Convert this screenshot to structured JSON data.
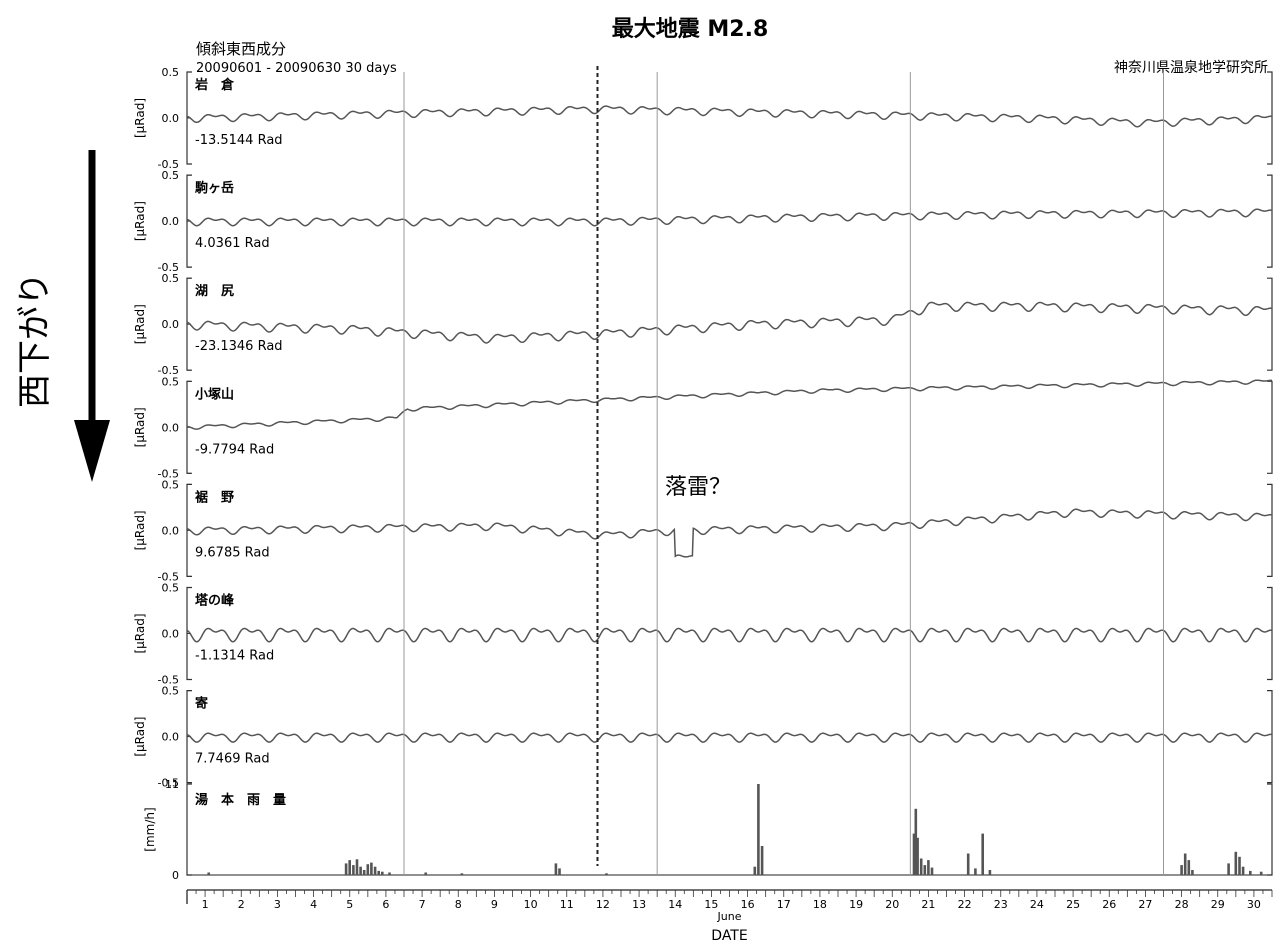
{
  "title": "最大地震 M2.8",
  "header": {
    "component": "傾斜東西成分",
    "period": "20090601 - 20090630 30 days",
    "institute": "神奈川県温泉地学研究所"
  },
  "side_label": "西下がり",
  "annotation": "落雷？",
  "chart_data": {
    "type": "line",
    "x_range": [
      0.5,
      30.5
    ],
    "x_ticks": [
      "1",
      "2",
      "3",
      "4",
      "5",
      "6",
      "7",
      "8",
      "9",
      "10",
      "11",
      "12",
      "13",
      "14",
      "15",
      "16",
      "17",
      "18",
      "19",
      "20",
      "21",
      "22",
      "23",
      "24",
      "25",
      "26",
      "27",
      "28",
      "29",
      "30"
    ],
    "xlabel_month": "June",
    "xlabel": "DATE",
    "earthquake_day": 11.85,
    "weekly_grid_days": [
      6.5,
      13.5,
      20.5,
      27.5
    ],
    "tilt_ylim": [
      -0.5,
      0.5
    ],
    "tilt_yticks": [
      "0.5",
      "0.0",
      "-0.5"
    ],
    "tilt_ylabel": "[μRad]",
    "stations": [
      {
        "name": "岩　倉",
        "offset": "-13.5144 Rad",
        "trend": [
          [
            0.5,
            0
          ],
          [
            6,
            0.05
          ],
          [
            12,
            0.1
          ],
          [
            18,
            0.05
          ],
          [
            24,
            0
          ],
          [
            27,
            -0.05
          ],
          [
            30.5,
            0
          ]
        ],
        "amp": 0.05
      },
      {
        "name": "駒ヶ岳",
        "offset": "4.0361 Rad",
        "trend": [
          [
            0.5,
            0
          ],
          [
            6,
            0
          ],
          [
            12,
            0
          ],
          [
            18,
            0.05
          ],
          [
            24,
            0.08
          ],
          [
            30.5,
            0.1
          ]
        ],
        "amp": 0.05
      },
      {
        "name": "湖　尻",
        "offset": "-23.1346 Rad",
        "trend": [
          [
            0.5,
            0
          ],
          [
            5,
            -0.05
          ],
          [
            9,
            -0.15
          ],
          [
            12,
            -0.1
          ],
          [
            16,
            0
          ],
          [
            20,
            0.05
          ],
          [
            21,
            0.2
          ],
          [
            24,
            0.2
          ],
          [
            30.5,
            0.15
          ]
        ],
        "amp": 0.06
      },
      {
        "name": "小塚山",
        "offset": "-9.7794 Rad",
        "trend": [
          [
            0.5,
            0
          ],
          [
            6.3,
            0.1
          ],
          [
            6.6,
            0.2
          ],
          [
            12,
            0.3
          ],
          [
            18,
            0.4
          ],
          [
            24,
            0.45
          ],
          [
            30.5,
            0.5
          ]
        ],
        "amp": 0.025
      },
      {
        "name": "裾　野",
        "offset": "9.6785 Rad",
        "trend": [
          [
            0.5,
            0
          ],
          [
            9,
            0.05
          ],
          [
            12,
            -0.05
          ],
          [
            14,
            0
          ],
          [
            20,
            0.05
          ],
          [
            25,
            0.2
          ],
          [
            30.5,
            0.15
          ]
        ],
        "amp": 0.05,
        "dip": [
          14,
          14.5,
          -0.3
        ]
      },
      {
        "name": "塔の峰",
        "offset": "-1.1314 Rad",
        "trend": [
          [
            0.5,
            0
          ],
          [
            30.5,
            0
          ]
        ],
        "amp": 0.09
      },
      {
        "name": "寄",
        "offset": "7.7469 Rad",
        "trend": [
          [
            0.5,
            0
          ],
          [
            30.5,
            0
          ]
        ],
        "amp": 0.06
      }
    ],
    "rain": {
      "name": "湯　本　雨　量",
      "ylabel": "[mm/h]",
      "ylim": [
        0,
        11
      ],
      "yticks": [
        "11",
        "0"
      ],
      "bars": [
        [
          1.1,
          0.3
        ],
        [
          4.9,
          1.4
        ],
        [
          5.0,
          1.8
        ],
        [
          5.1,
          1.2
        ],
        [
          5.2,
          1.9
        ],
        [
          5.3,
          1.0
        ],
        [
          5.4,
          0.6
        ],
        [
          5.5,
          1.3
        ],
        [
          5.6,
          1.5
        ],
        [
          5.7,
          1.0
        ],
        [
          5.8,
          0.5
        ],
        [
          5.9,
          0.4
        ],
        [
          6.1,
          0.3
        ],
        [
          7.1,
          0.3
        ],
        [
          8.1,
          0.2
        ],
        [
          10.7,
          1.4
        ],
        [
          10.8,
          0.8
        ],
        [
          12.1,
          0.2
        ],
        [
          16.2,
          1.0
        ],
        [
          16.3,
          11.0
        ],
        [
          16.4,
          3.5
        ],
        [
          20.6,
          5.0
        ],
        [
          20.65,
          8.0
        ],
        [
          20.7,
          4.5
        ],
        [
          20.8,
          2.0
        ],
        [
          20.9,
          1.2
        ],
        [
          21.0,
          1.8
        ],
        [
          21.1,
          0.9
        ],
        [
          22.1,
          2.6
        ],
        [
          22.3,
          0.8
        ],
        [
          22.5,
          5.0
        ],
        [
          22.7,
          0.6
        ],
        [
          28.0,
          1.2
        ],
        [
          28.1,
          2.6
        ],
        [
          28.2,
          1.8
        ],
        [
          28.3,
          0.6
        ],
        [
          29.3,
          1.4
        ],
        [
          29.5,
          2.8
        ],
        [
          29.6,
          2.2
        ],
        [
          29.7,
          1.0
        ],
        [
          29.9,
          0.5
        ],
        [
          30.2,
          0.4
        ]
      ]
    }
  }
}
